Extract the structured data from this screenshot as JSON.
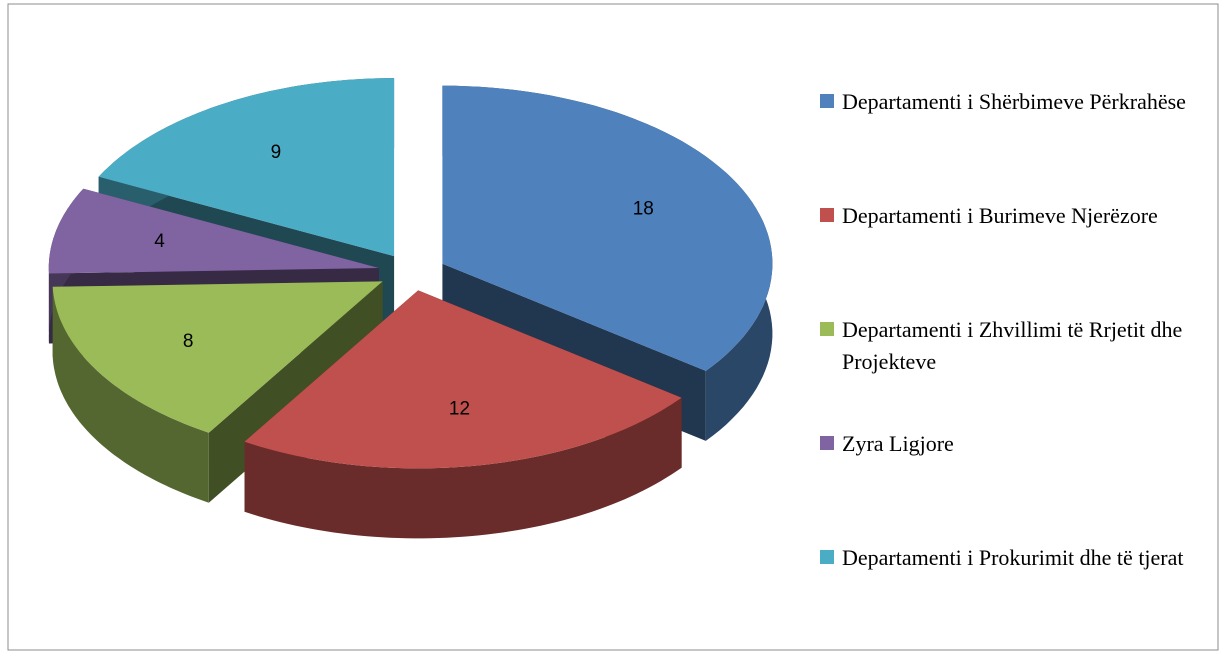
{
  "chart_data": {
    "type": "pie3d",
    "categories": [
      "Departamenti i Shërbimeve Përkrahëse",
      "Departamenti i Burimeve Njerëzore",
      "Departamenti i Zhvillimi të Rrjetit dhe Projekteve",
      "Zyra Ligjore",
      "Departamenti i Prokurimit dhe të tjerat"
    ],
    "values": [
      18,
      12,
      8,
      4,
      9
    ],
    "colors": [
      "#4f81bd",
      "#c0504d",
      "#9bbb59",
      "#8064a2",
      "#4bacc6"
    ],
    "legend": "right"
  }
}
